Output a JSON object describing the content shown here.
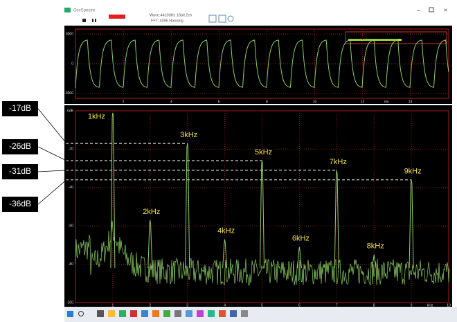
{
  "window": {
    "title": "OscSpectre",
    "info_wave": "Wave:44100Hz 16bit 2ch",
    "info_fft": "FFT: 4096 Hanning"
  },
  "waveform": {
    "ylim": [
      -3500,
      3500
    ],
    "yticks": [
      3000,
      0,
      -3000
    ],
    "xlim": [
      0,
      15.6
    ],
    "xticks": [
      2,
      4,
      6,
      8,
      10,
      12,
      14
    ],
    "x_unit": "ms"
  },
  "spectrum": {
    "ylim": [
      -100,
      0
    ],
    "yticks": [
      {
        "value": 0,
        "label": "0dB"
      },
      -20,
      -40,
      -60,
      -80,
      -100
    ],
    "xlim": [
      0,
      10
    ],
    "xticks": [
      1,
      2,
      3,
      4,
      5,
      6,
      7,
      8,
      9,
      10
    ],
    "x_unit": "kHz",
    "peaks": [
      {
        "label": "1kHz",
        "freq": 1,
        "level": -1
      },
      {
        "label": "2kHz",
        "freq": 2,
        "level": -57
      },
      {
        "label": "3kHz",
        "freq": 3,
        "level": -17
      },
      {
        "label": "4kHz",
        "freq": 4,
        "level": -67
      },
      {
        "label": "5kHz",
        "freq": 5,
        "level": -26
      },
      {
        "label": "6kHz",
        "freq": 6,
        "level": -71
      },
      {
        "label": "7kHz",
        "freq": 7,
        "level": -31
      },
      {
        "label": "8kHz",
        "freq": 8,
        "level": -75
      },
      {
        "label": "9kHz",
        "freq": 9,
        "level": -36
      }
    ]
  },
  "callouts": [
    {
      "label": "-17dB",
      "level": -17
    },
    {
      "label": "-26dB",
      "level": -26
    },
    {
      "label": "-31dB",
      "level": -31
    },
    {
      "label": "-36dB",
      "level": -36
    }
  ]
}
